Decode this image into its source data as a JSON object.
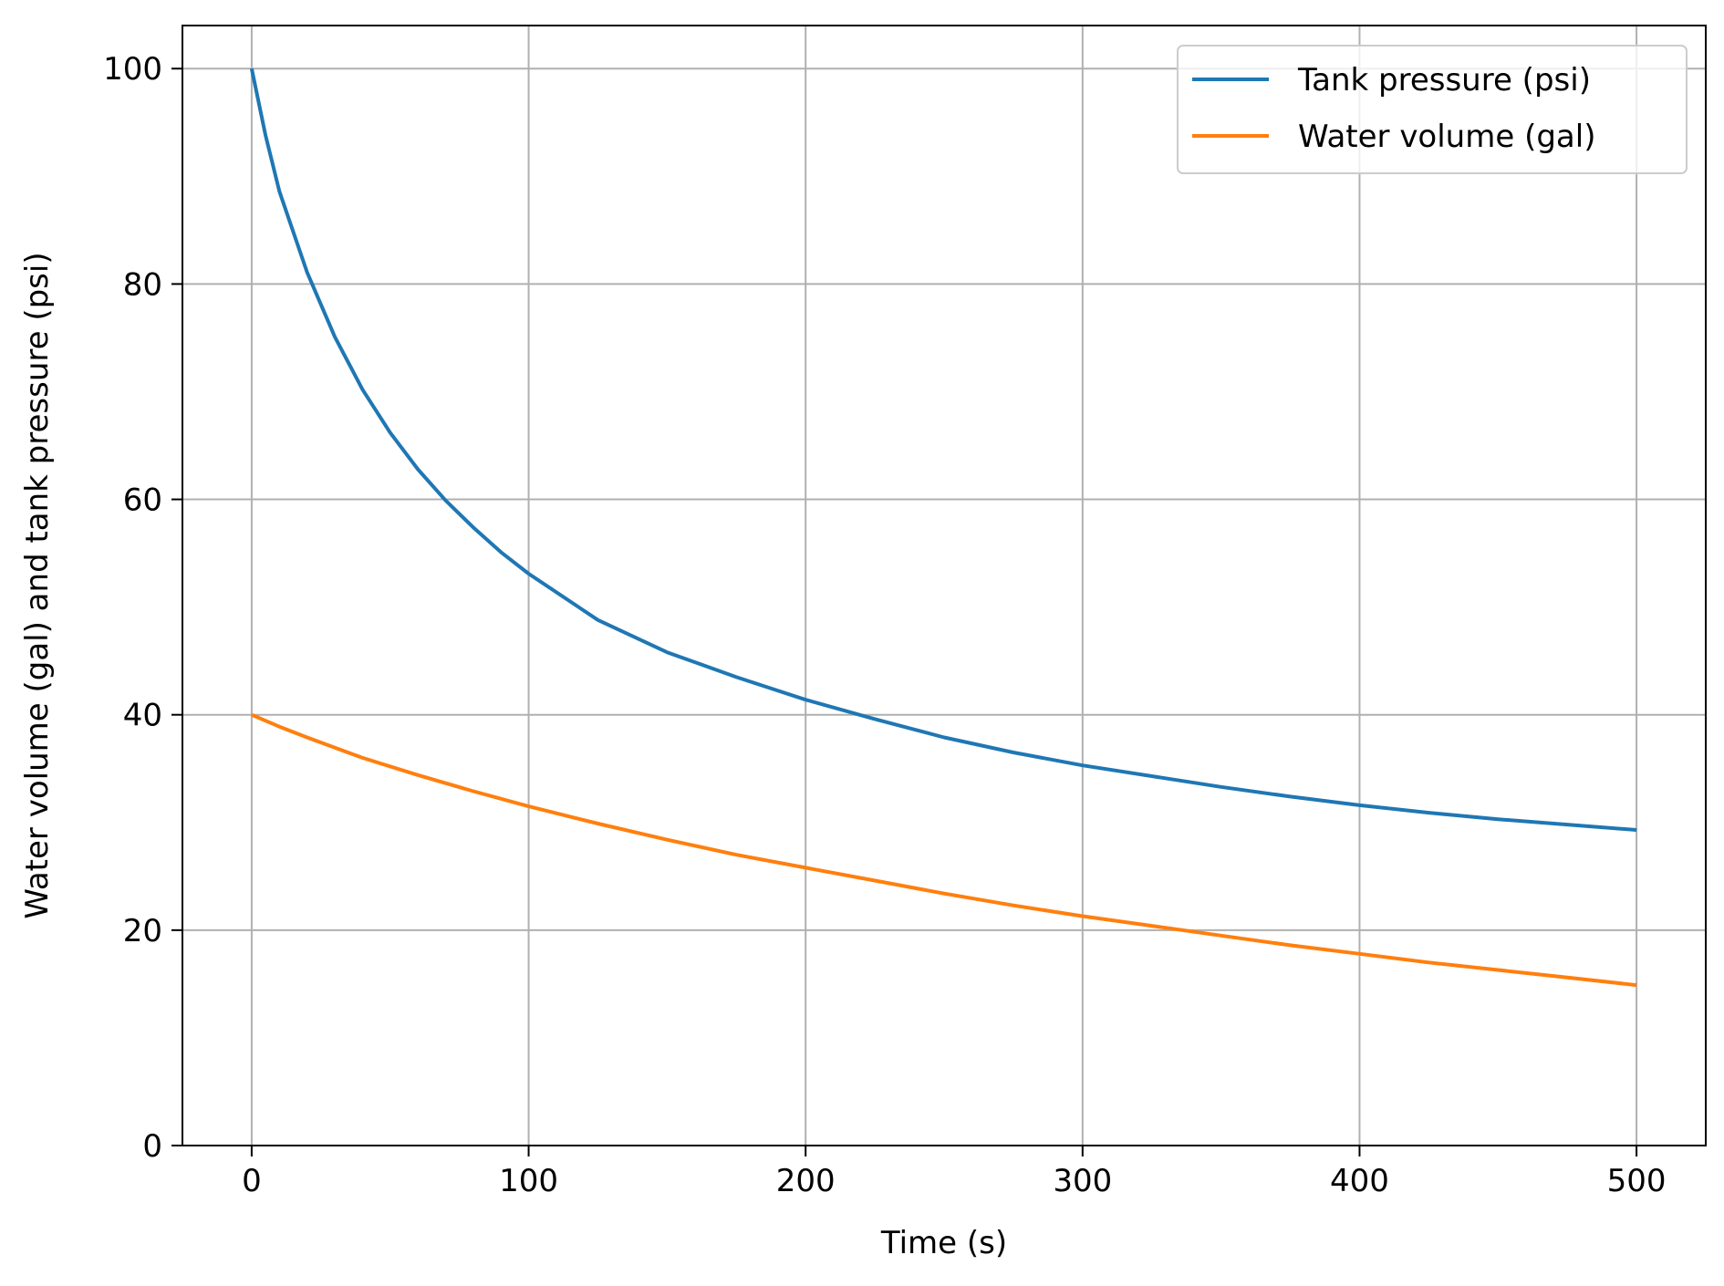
{
  "chart_data": {
    "type": "line",
    "title": "",
    "xlabel": "Time (s)",
    "ylabel": "Water volume (gal) and tank pressure (psi)",
    "xlim": [
      -25,
      525
    ],
    "ylim": [
      0,
      104
    ],
    "xticks": [
      0,
      100,
      200,
      300,
      400,
      500
    ],
    "yticks": [
      0,
      20,
      40,
      60,
      80,
      100
    ],
    "xtick_labels": [
      "0",
      "100",
      "200",
      "300",
      "400",
      "500"
    ],
    "ytick_labels": [
      "0",
      "20",
      "40",
      "60",
      "80",
      "100"
    ],
    "grid": true,
    "legend_position": "top-right",
    "series": [
      {
        "name": "Tank pressure (psi)",
        "color": "#1f77b4",
        "x": [
          0,
          5,
          10,
          20,
          30,
          40,
          50,
          60,
          70,
          80,
          90,
          100,
          125,
          150,
          175,
          200,
          225,
          250,
          275,
          300,
          325,
          350,
          375,
          400,
          425,
          450,
          475,
          500
        ],
        "y": [
          100,
          93.8,
          88.6,
          81.1,
          75.1,
          70.2,
          66.2,
          62.8,
          59.9,
          57.4,
          55.1,
          53.1,
          48.8,
          45.8,
          43.5,
          41.4,
          39.6,
          37.9,
          36.5,
          35.3,
          34.3,
          33.3,
          32.4,
          31.6,
          30.9,
          30.3,
          29.8,
          29.3
        ]
      },
      {
        "name": "Water volume (gal)",
        "color": "#ff7f0e",
        "x": [
          0,
          10,
          20,
          40,
          60,
          80,
          100,
          125,
          150,
          175,
          200,
          225,
          250,
          275,
          300,
          325,
          350,
          375,
          400,
          425,
          450,
          475,
          500
        ],
        "y": [
          40,
          38.9,
          37.9,
          36.0,
          34.4,
          32.9,
          31.5,
          29.9,
          28.4,
          27.0,
          25.8,
          24.6,
          23.4,
          22.3,
          21.3,
          20.4,
          19.5,
          18.6,
          17.8,
          17.0,
          16.3,
          15.6,
          14.9
        ]
      }
    ]
  }
}
